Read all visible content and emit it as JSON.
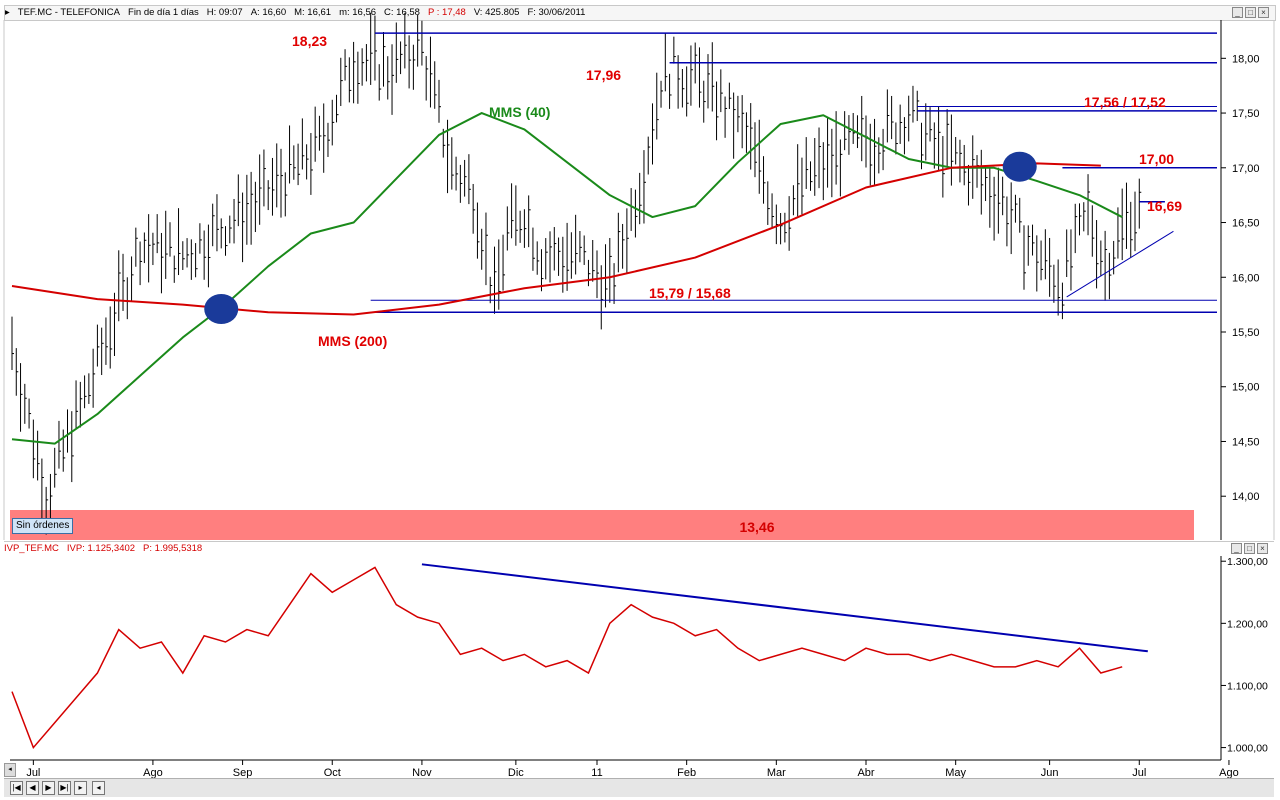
{
  "header": {
    "symbol": "TEF.MC - TELEFONICA",
    "period": "Fin de día 1 días",
    "hora": "H: 09:07",
    "apertura": "A: 16,60",
    "maximo": "M: 16,61",
    "minimo": "m: 16,56",
    "cierre": "C: 16,58",
    "precio": "P : 17,48",
    "volumen": "V: 425.805",
    "fecha": "F: 30/06/2011"
  },
  "indicator_header": {
    "name": "IVP_TEF.MC",
    "ivp": "IVP: 1.125,3402",
    "p": "P: 1.995,5318"
  },
  "orders_button": "Sin órdenes",
  "colors": {
    "price_bars": "#000000",
    "mms40": "#1a8a1a",
    "mms200": "#d40000",
    "levels": "#0000b0",
    "annotation": "#e00000",
    "ivp": "#d40000",
    "band": "#ff7f7f"
  },
  "chart_data": [
    {
      "type": "line",
      "ylim": [
        13.6,
        18.35
      ],
      "y_ticks": [
        "18,00",
        "17,50",
        "17,00",
        "16,50",
        "16,00",
        "15,50",
        "15,00",
        "14,50",
        "14,00"
      ],
      "y_tick_values": [
        18.0,
        17.5,
        17.0,
        16.5,
        16.0,
        15.5,
        15.0,
        14.5,
        14.0
      ],
      "x_ticks": [
        "Jul",
        "Ago",
        "Sep",
        "Oct",
        "Nov",
        "Dic",
        "11",
        "Feb",
        "Mar",
        "Abr",
        "May",
        "Jun",
        "Jul",
        "Ago"
      ],
      "x_tick_index": [
        5,
        33,
        54,
        75,
        96,
        118,
        137,
        158,
        179,
        200,
        221,
        243,
        264,
        285
      ],
      "series": [
        {
          "name": "MMS (40)",
          "x": [
            0,
            10,
            20,
            30,
            40,
            50,
            60,
            70,
            80,
            90,
            100,
            110,
            120,
            130,
            140,
            150,
            160,
            170,
            180,
            190,
            200,
            210,
            220,
            230,
            240,
            250,
            260
          ],
          "values": [
            14.52,
            14.48,
            14.75,
            15.1,
            15.45,
            15.75,
            16.1,
            16.4,
            16.5,
            16.9,
            17.3,
            17.5,
            17.35,
            17.05,
            16.75,
            16.55,
            16.65,
            17.05,
            17.4,
            17.48,
            17.28,
            17.08,
            17.0,
            17.0,
            16.88,
            16.75,
            16.55
          ]
        },
        {
          "name": "MMS (200)",
          "x": [
            0,
            20,
            40,
            60,
            80,
            100,
            120,
            140,
            160,
            180,
            200,
            220,
            240,
            255
          ],
          "values": [
            15.92,
            15.8,
            15.75,
            15.68,
            15.66,
            15.75,
            15.9,
            16.0,
            16.18,
            16.48,
            16.82,
            17.0,
            17.04,
            17.02
          ]
        }
      ]
    },
    {
      "type": "line",
      "ylim": [
        0.98,
        1.31
      ],
      "y_ticks": [
        "1.300,00",
        "1.200,00",
        "1.100,00",
        "1.000,00"
      ],
      "y_tick_values": [
        1.3,
        1.2,
        1.1,
        1.0
      ],
      "series": [
        {
          "name": "IVP_TEF.MC",
          "x": [
            0,
            5,
            10,
            15,
            20,
            25,
            30,
            35,
            40,
            45,
            50,
            55,
            60,
            65,
            70,
            75,
            80,
            85,
            90,
            95,
            100,
            105,
            110,
            115,
            120,
            125,
            130,
            135,
            140,
            145,
            150,
            155,
            160,
            165,
            170,
            175,
            180,
            185,
            190,
            195,
            200,
            205,
            210,
            215,
            220,
            225,
            230,
            235,
            240,
            245,
            250,
            255,
            260
          ],
          "values": [
            1.09,
            1.0,
            1.04,
            1.08,
            1.12,
            1.19,
            1.16,
            1.17,
            1.12,
            1.18,
            1.17,
            1.19,
            1.18,
            1.23,
            1.28,
            1.25,
            1.27,
            1.29,
            1.23,
            1.21,
            1.2,
            1.15,
            1.16,
            1.14,
            1.15,
            1.13,
            1.14,
            1.12,
            1.2,
            1.23,
            1.21,
            1.2,
            1.18,
            1.19,
            1.16,
            1.14,
            1.15,
            1.16,
            1.15,
            1.14,
            1.16,
            1.15,
            1.15,
            1.14,
            1.15,
            1.14,
            1.13,
            1.13,
            1.14,
            1.13,
            1.16,
            1.12,
            1.13
          ]
        }
      ]
    }
  ],
  "levels": [
    {
      "label": "18,23",
      "value": 18.23,
      "from": 85,
      "to": 290
    },
    {
      "label": "17,96",
      "value": 17.96,
      "from": 154,
      "to": 290
    },
    {
      "label": "17,56 / 17,52",
      "value": 17.56,
      "value2": 17.52,
      "from": 212,
      "to": 290
    },
    {
      "label": "17,00",
      "value": 17.0,
      "from": 246,
      "to": 290
    },
    {
      "label": "16,69",
      "value": 16.69,
      "from": 264,
      "to": 270
    },
    {
      "label": "15,79 / 15,68",
      "value": 15.79,
      "value2": 15.68,
      "from": 84,
      "to": 290
    }
  ],
  "band_label": "13,46",
  "band_value": 13.46
}
